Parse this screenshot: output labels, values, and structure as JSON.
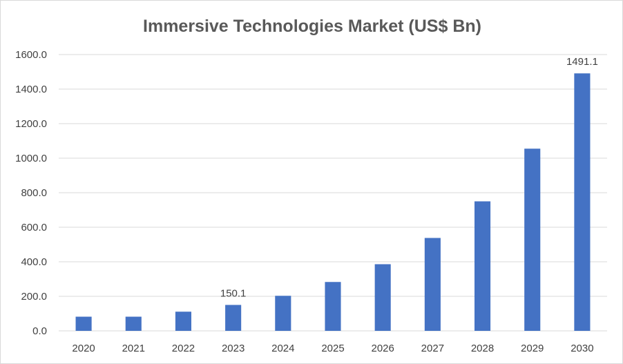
{
  "chart_data": {
    "type": "bar",
    "title": "Immersive Technologies Market (US$ Bn)",
    "xlabel": "",
    "ylabel": "",
    "categories": [
      "2020",
      "2021",
      "2022",
      "2023",
      "2024",
      "2025",
      "2026",
      "2027",
      "2028",
      "2029",
      "2030"
    ],
    "values": [
      82,
      82,
      111,
      150.1,
      203,
      283,
      386,
      538,
      750,
      1055,
      1491.1
    ],
    "ylim": [
      0,
      1600
    ],
    "yticks": [
      0,
      200,
      400,
      600,
      800,
      1000,
      1200,
      1400,
      1600
    ],
    "ytick_labels": [
      "0.0",
      "200.0",
      "400.0",
      "600.0",
      "800.0",
      "1000.0",
      "1200.0",
      "1400.0",
      "1600.0"
    ],
    "data_labels": [
      {
        "category": "2023",
        "text": "150.1"
      },
      {
        "category": "2030",
        "text": "1491.1"
      }
    ],
    "grid": true,
    "legend": "none",
    "colors": {
      "bar": "#4472c4",
      "grid": "#d9d9d9",
      "text": "#404040",
      "title": "#595959"
    }
  }
}
